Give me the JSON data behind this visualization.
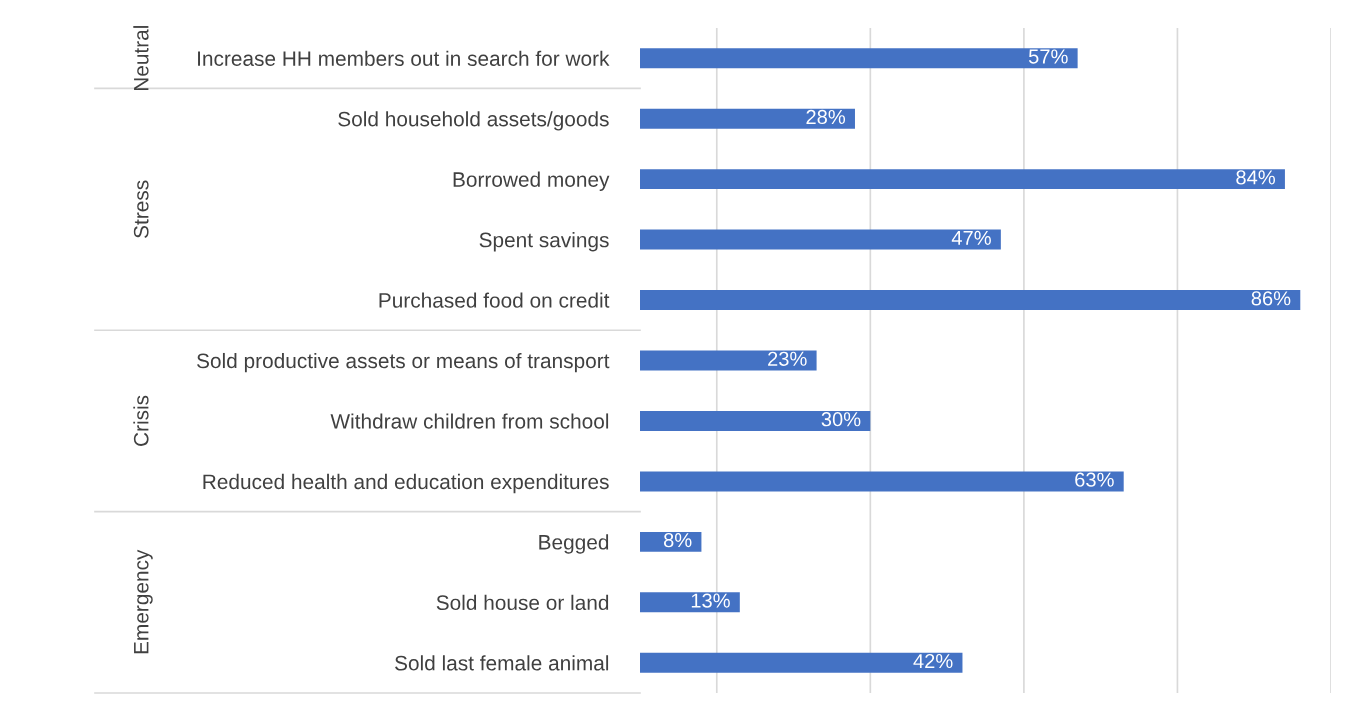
{
  "chart_data": {
    "type": "bar",
    "orientation": "horizontal",
    "categories": [
      "Increase HH members out in search for work",
      "Sold household assets/goods",
      "Borrowed money",
      "Spent savings",
      "Purchased food on credit",
      "Sold productive assets or means of transport",
      "Withdraw children from school",
      "Reduced health and education expenditures",
      "Begged",
      "Sold house or land",
      "Sold last female animal"
    ],
    "values": [
      57,
      28,
      84,
      47,
      86,
      23,
      30,
      63,
      8,
      13,
      42
    ],
    "value_labels": [
      "57%",
      "28%",
      "84%",
      "47%",
      "86%",
      "23%",
      "30%",
      "63%",
      "8%",
      "13%",
      "42%"
    ],
    "color": "#4472c4",
    "xlim": [
      0,
      90
    ],
    "xticks": [
      {
        "value": 10,
        "label": null
      },
      {
        "value": 30,
        "label": null
      },
      {
        "value": 50,
        "label": null
      },
      {
        "value": 70,
        "label": null
      },
      {
        "value": 90,
        "label": null
      }
    ],
    "grid": "x",
    "tick_labels": "y",
    "annotations": [
      "Neutral",
      "Stress",
      "Crisis",
      "Emergency"
    ]
  }
}
